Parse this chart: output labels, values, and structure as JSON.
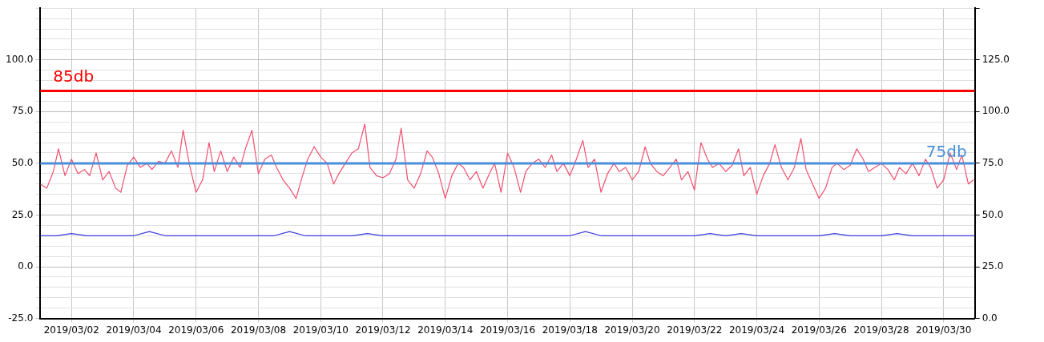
{
  "chart_data": {
    "type": "line",
    "xlim": [
      "2019-03-01",
      "2019-03-31"
    ],
    "xticks": [
      {
        "value": "2019-03-02",
        "label": "2019/03/02"
      },
      {
        "value": "2019-03-04",
        "label": "2019/03/04"
      },
      {
        "value": "2019-03-06",
        "label": "2019/03/06"
      },
      {
        "value": "2019-03-08",
        "label": "2019/03/08"
      },
      {
        "value": "2019-03-10",
        "label": "2019/03/10"
      },
      {
        "value": "2019-03-12",
        "label": "2019/03/12"
      },
      {
        "value": "2019-03-14",
        "label": "2019/03/14"
      },
      {
        "value": "2019-03-16",
        "label": "2019/03/16"
      },
      {
        "value": "2019-03-18",
        "label": "2019/03/18"
      },
      {
        "value": "2019-03-20",
        "label": "2019/03/20"
      },
      {
        "value": "2019-03-22",
        "label": "2019/03/22"
      },
      {
        "value": "2019-03-24",
        "label": "2019/03/24"
      },
      {
        "value": "2019-03-26",
        "label": "2019/03/26"
      },
      {
        "value": "2019-03-28",
        "label": "2019/03/28"
      },
      {
        "value": "2019-03-30",
        "label": "2019/03/30"
      }
    ],
    "ylim": [
      -25,
      125
    ],
    "yticks": [
      {
        "value": -25,
        "label": "-25.0"
      },
      {
        "value": -20,
        "label": null
      },
      {
        "value": -15,
        "label": null
      },
      {
        "value": -10,
        "label": null
      },
      {
        "value": -5,
        "label": null
      },
      {
        "value": 0,
        "label": "0.0"
      },
      {
        "value": 5,
        "label": null
      },
      {
        "value": 10,
        "label": null
      },
      {
        "value": 15,
        "label": null
      },
      {
        "value": 20,
        "label": null
      },
      {
        "value": 25,
        "label": "25.0"
      },
      {
        "value": 30,
        "label": null
      },
      {
        "value": 35,
        "label": null
      },
      {
        "value": 40,
        "label": null
      },
      {
        "value": 45,
        "label": null
      },
      {
        "value": 50,
        "label": "50.0"
      },
      {
        "value": 55,
        "label": null
      },
      {
        "value": 60,
        "label": null
      },
      {
        "value": 65,
        "label": null
      },
      {
        "value": 70,
        "label": null
      },
      {
        "value": 75,
        "label": "75.0"
      },
      {
        "value": 80,
        "label": null
      },
      {
        "value": 85,
        "label": null
      },
      {
        "value": 90,
        "label": null
      },
      {
        "value": 95,
        "label": null
      },
      {
        "value": 100,
        "label": "100.0"
      },
      {
        "value": 105,
        "label": null
      },
      {
        "value": 110,
        "label": null
      },
      {
        "value": 115,
        "label": null
      },
      {
        "value": 120,
        "label": null
      },
      {
        "value": 125,
        "label": null
      }
    ],
    "y2lim": [
      0,
      150
    ],
    "y2ticks": [
      {
        "value": 0,
        "label": "0.0"
      },
      {
        "value": 25,
        "label": "25.0"
      },
      {
        "value": 50,
        "label": "50.0"
      },
      {
        "value": 75,
        "label": "75.0"
      },
      {
        "value": 100,
        "label": "100.0"
      },
      {
        "value": 125,
        "label": "125.0"
      },
      {
        "value": 150,
        "label": null
      }
    ],
    "grid": true,
    "line_style": "solid",
    "ref_lines": [
      {
        "axis": "y",
        "value": 85,
        "label": "85db",
        "color": "#ff0000"
      },
      {
        "axis": "y2",
        "value": 75,
        "label": "75db",
        "color": "#4a8fd8"
      }
    ],
    "series": [
      {
        "color": "#f0506e",
        "x": [
          "2019-03-01T00:00",
          "2019-03-01T05:00",
          "2019-03-01T10:00",
          "2019-03-01T14:00",
          "2019-03-01T19:00",
          "2019-03-02T00:00",
          "2019-03-02T05:00",
          "2019-03-02T10:00",
          "2019-03-02T14:00",
          "2019-03-02T19:00",
          "2019-03-03T00:00",
          "2019-03-03T05:00",
          "2019-03-03T10:00",
          "2019-03-03T14:00",
          "2019-03-03T19:00",
          "2019-03-04T00:00",
          "2019-03-04T05:00",
          "2019-03-04T10:00",
          "2019-03-04T14:00",
          "2019-03-04T19:00",
          "2019-03-05T00:00",
          "2019-03-05T05:00",
          "2019-03-05T10:00",
          "2019-03-05T14:00",
          "2019-03-05T19:00",
          "2019-03-06T00:00",
          "2019-03-06T05:00",
          "2019-03-06T10:00",
          "2019-03-06T14:00",
          "2019-03-06T19:00",
          "2019-03-07T00:00",
          "2019-03-07T05:00",
          "2019-03-07T10:00",
          "2019-03-07T14:00",
          "2019-03-07T19:00",
          "2019-03-08T00:00",
          "2019-03-08T05:00",
          "2019-03-08T10:00",
          "2019-03-08T14:00",
          "2019-03-08T19:00",
          "2019-03-09T00:00",
          "2019-03-09T05:00",
          "2019-03-09T10:00",
          "2019-03-09T14:00",
          "2019-03-09T19:00",
          "2019-03-10T00:00",
          "2019-03-10T05:00",
          "2019-03-10T10:00",
          "2019-03-10T14:00",
          "2019-03-10T19:00",
          "2019-03-11T00:00",
          "2019-03-11T05:00",
          "2019-03-11T10:00",
          "2019-03-11T14:00",
          "2019-03-11T19:00",
          "2019-03-12T00:00",
          "2019-03-12T05:00",
          "2019-03-12T10:00",
          "2019-03-12T14:00",
          "2019-03-12T19:00",
          "2019-03-13T00:00",
          "2019-03-13T05:00",
          "2019-03-13T10:00",
          "2019-03-13T14:00",
          "2019-03-13T19:00",
          "2019-03-14T00:00",
          "2019-03-14T05:00",
          "2019-03-14T10:00",
          "2019-03-14T14:00",
          "2019-03-14T19:00",
          "2019-03-15T00:00",
          "2019-03-15T05:00",
          "2019-03-15T10:00",
          "2019-03-15T14:00",
          "2019-03-15T19:00",
          "2019-03-16T00:00",
          "2019-03-16T05:00",
          "2019-03-16T10:00",
          "2019-03-16T14:00",
          "2019-03-16T19:00",
          "2019-03-17T00:00",
          "2019-03-17T05:00",
          "2019-03-17T10:00",
          "2019-03-17T14:00",
          "2019-03-17T19:00",
          "2019-03-18T00:00",
          "2019-03-18T05:00",
          "2019-03-18T10:00",
          "2019-03-18T14:00",
          "2019-03-18T19:00",
          "2019-03-19T00:00",
          "2019-03-19T05:00",
          "2019-03-19T10:00",
          "2019-03-19T14:00",
          "2019-03-19T19:00",
          "2019-03-20T00:00",
          "2019-03-20T05:00",
          "2019-03-20T10:00",
          "2019-03-20T14:00",
          "2019-03-20T19:00",
          "2019-03-21T00:00",
          "2019-03-21T05:00",
          "2019-03-21T10:00",
          "2019-03-21T14:00",
          "2019-03-21T19:00",
          "2019-03-22T00:00",
          "2019-03-22T05:00",
          "2019-03-22T10:00",
          "2019-03-22T14:00",
          "2019-03-22T19:00",
          "2019-03-23T00:00",
          "2019-03-23T05:00",
          "2019-03-23T10:00",
          "2019-03-23T14:00",
          "2019-03-23T19:00",
          "2019-03-24T00:00",
          "2019-03-24T05:00",
          "2019-03-24T10:00",
          "2019-03-24T14:00",
          "2019-03-24T19:00",
          "2019-03-25T00:00",
          "2019-03-25T05:00",
          "2019-03-25T10:00",
          "2019-03-25T14:00",
          "2019-03-25T19:00",
          "2019-03-26T00:00",
          "2019-03-26T05:00",
          "2019-03-26T10:00",
          "2019-03-26T14:00",
          "2019-03-26T19:00",
          "2019-03-27T00:00",
          "2019-03-27T05:00",
          "2019-03-27T10:00",
          "2019-03-27T14:00",
          "2019-03-27T19:00",
          "2019-03-28T00:00",
          "2019-03-28T05:00",
          "2019-03-28T10:00",
          "2019-03-28T14:00",
          "2019-03-28T19:00",
          "2019-03-29T00:00",
          "2019-03-29T05:00",
          "2019-03-29T10:00",
          "2019-03-29T14:00",
          "2019-03-29T19:00",
          "2019-03-30T00:00",
          "2019-03-30T05:00",
          "2019-03-30T10:00",
          "2019-03-30T14:00",
          "2019-03-30T19:00",
          "2019-03-30T23:00"
        ],
        "values": [
          40,
          38,
          46,
          57,
          44,
          52,
          45,
          47,
          44,
          55,
          42,
          46,
          38,
          36,
          49,
          53,
          48,
          50,
          47,
          51,
          50,
          56,
          48,
          66,
          49,
          36,
          42,
          60,
          46,
          56,
          46,
          53,
          48,
          57,
          66,
          45,
          52,
          54,
          48,
          42,
          38,
          33,
          44,
          52,
          58,
          53,
          50,
          40,
          45,
          50,
          55,
          57,
          69,
          48,
          44,
          43,
          45,
          52,
          67,
          42,
          38,
          45,
          56,
          53,
          45,
          33,
          44,
          50,
          48,
          42,
          46,
          38,
          45,
          50,
          36,
          55,
          48,
          36,
          46,
          50,
          52,
          48,
          54,
          46,
          50,
          44,
          52,
          61,
          48,
          52,
          36,
          45,
          50,
          46,
          48,
          42,
          46,
          58,
          50,
          46,
          44,
          48,
          52,
          42,
          46,
          37,
          60,
          52,
          48,
          50,
          46,
          49,
          57,
          44,
          48,
          35,
          44,
          50,
          59,
          48,
          42,
          48,
          62,
          47,
          40,
          33,
          38,
          48,
          50,
          47,
          49,
          57,
          52,
          46,
          48,
          50,
          47,
          42,
          48,
          45,
          50,
          44,
          52,
          48,
          38,
          42,
          55,
          47,
          54,
          40,
          42
        ]
      },
      {
        "color": "#3b3bdf",
        "x": [
          "2019-03-01T00:00",
          "2019-03-01T12:00",
          "2019-03-02T00:00",
          "2019-03-02T12:00",
          "2019-03-03T00:00",
          "2019-03-03T12:00",
          "2019-03-04T00:00",
          "2019-03-04T12:00",
          "2019-03-05T00:00",
          "2019-03-05T12:00",
          "2019-03-06T00:00",
          "2019-03-06T12:00",
          "2019-03-07T00:00",
          "2019-03-07T12:00",
          "2019-03-08T00:00",
          "2019-03-08T12:00",
          "2019-03-09T00:00",
          "2019-03-09T12:00",
          "2019-03-10T00:00",
          "2019-03-10T12:00",
          "2019-03-11T00:00",
          "2019-03-11T12:00",
          "2019-03-12T00:00",
          "2019-03-12T12:00",
          "2019-03-13T00:00",
          "2019-03-13T12:00",
          "2019-03-14T00:00",
          "2019-03-14T12:00",
          "2019-03-15T00:00",
          "2019-03-15T12:00",
          "2019-03-16T00:00",
          "2019-03-16T12:00",
          "2019-03-17T00:00",
          "2019-03-17T12:00",
          "2019-03-18T00:00",
          "2019-03-18T12:00",
          "2019-03-19T00:00",
          "2019-03-19T12:00",
          "2019-03-20T00:00",
          "2019-03-20T12:00",
          "2019-03-21T00:00",
          "2019-03-21T12:00",
          "2019-03-22T00:00",
          "2019-03-22T12:00",
          "2019-03-23T00:00",
          "2019-03-23T12:00",
          "2019-03-24T00:00",
          "2019-03-24T12:00",
          "2019-03-25T00:00",
          "2019-03-25T12:00",
          "2019-03-26T00:00",
          "2019-03-26T12:00",
          "2019-03-27T00:00",
          "2019-03-27T12:00",
          "2019-03-28T00:00",
          "2019-03-28T12:00",
          "2019-03-29T00:00",
          "2019-03-29T12:00",
          "2019-03-30T00:00",
          "2019-03-30T12:00",
          "2019-03-31T00:00"
        ],
        "values": [
          15,
          15,
          16,
          15,
          15,
          15,
          15,
          17,
          15,
          15,
          15,
          15,
          15,
          15,
          15,
          15,
          17,
          15,
          15,
          15,
          15,
          16,
          15,
          15,
          15,
          15,
          15,
          15,
          15,
          15,
          15,
          15,
          15,
          15,
          15,
          17,
          15,
          15,
          15,
          15,
          15,
          15,
          15,
          16,
          15,
          16,
          15,
          15,
          15,
          15,
          15,
          16,
          15,
          15,
          15,
          16,
          15,
          15,
          15,
          15,
          15
        ]
      }
    ]
  }
}
